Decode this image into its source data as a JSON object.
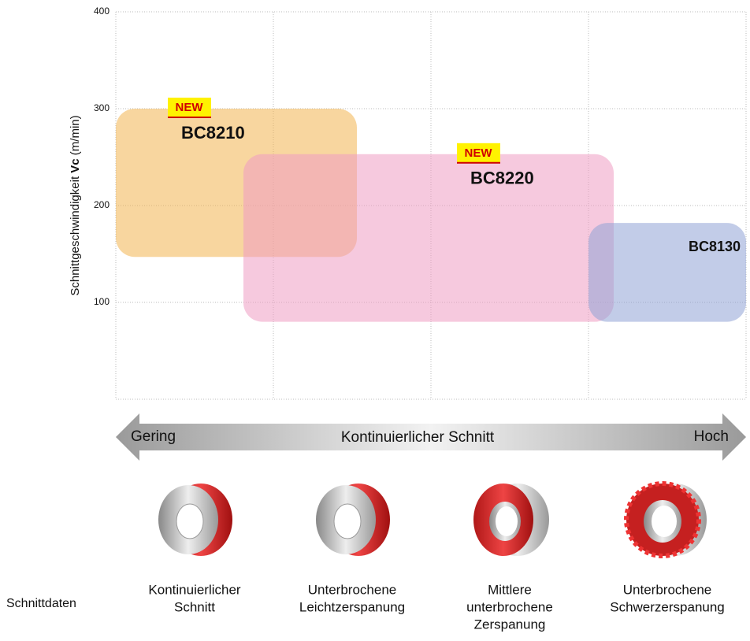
{
  "chart_data": {
    "type": "range-box",
    "y_label": {
      "prefix": "Schnittgeschwindigkeit",
      "bold": "Vc",
      "unit": "(m/min)"
    },
    "ylim": [
      0,
      400
    ],
    "yticks": [
      100,
      200,
      300,
      400
    ],
    "xlim": [
      0,
      4
    ],
    "xticks": [
      0,
      1,
      2,
      3,
      4
    ],
    "grid": true,
    "series": [
      {
        "name": "BC8210",
        "badge": "NEW",
        "color": "#f2b450",
        "x": [
          0,
          1.53
        ],
        "y": [
          147,
          300
        ]
      },
      {
        "name": "BC8220",
        "badge": "NEW",
        "color": "#ef9cc3",
        "x": [
          0.81,
          3.16
        ],
        "y": [
          80,
          253
        ]
      },
      {
        "name": "BC8130",
        "color": "#8fa3d6",
        "x": [
          3.0,
          4.0
        ],
        "y": [
          80,
          182
        ]
      }
    ],
    "arrow": {
      "left": "Gering",
      "center": "Kontinuierlicher Schnitt",
      "right": "Hoch"
    },
    "row_label": "Schnittdaten",
    "categories": [
      [
        "Kontinuierlicher",
        "Schnitt"
      ],
      [
        "Unterbrochene",
        "Leichtzerspanung"
      ],
      [
        "Mittlere",
        "unterbrochene",
        "Zerspanung"
      ],
      [
        "Unterbrochene",
        "Schwerzerspanung"
      ]
    ]
  }
}
